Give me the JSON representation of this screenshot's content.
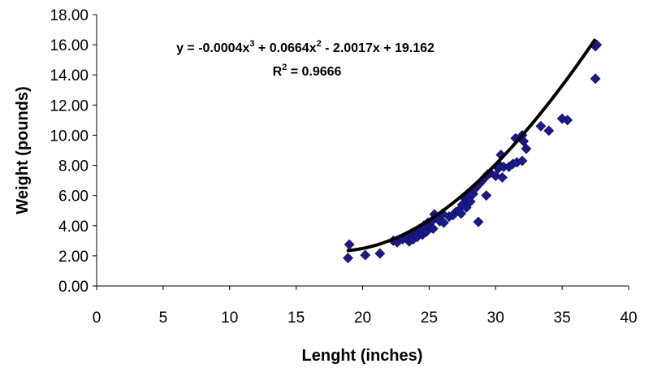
{
  "chart_data": {
    "type": "scatter",
    "xlabel": "Lenght (inches)",
    "ylabel": "Weight (pounds)",
    "xlim": [
      0,
      40
    ],
    "ylim": [
      0,
      18
    ],
    "x_ticks": [
      "0",
      "5",
      "10",
      "15",
      "20",
      "25",
      "30",
      "35",
      "40"
    ],
    "y_ticks": [
      "0.00",
      "2.00",
      "4.00",
      "6.00",
      "8.00",
      "10.00",
      "12.00",
      "14.00",
      "16.00",
      "18.00"
    ],
    "grid": false,
    "legend": false,
    "trendline": {
      "type": "polynomial-3",
      "equation": {
        "prefix": "y = -0.0004x",
        "exp1": "3",
        "mid": " + 0.0664x",
        "exp2": "2",
        "suffix": " - 2.0017x + 19.162"
      },
      "r2": {
        "prefix": "R",
        "exp": "2",
        "suffix": " = 0.9666"
      },
      "coefficients": [
        -0.0004,
        0.0664,
        -2.0017,
        19.162
      ],
      "x_range": [
        18.8,
        37.5
      ]
    },
    "marker_color": "#1a1a8c",
    "points": [
      [
        18.9,
        1.85
      ],
      [
        19.0,
        2.75
      ],
      [
        20.2,
        2.05
      ],
      [
        21.3,
        2.15
      ],
      [
        22.3,
        3.0
      ],
      [
        22.6,
        2.9
      ],
      [
        23.0,
        3.1
      ],
      [
        23.3,
        3.3
      ],
      [
        23.5,
        2.95
      ],
      [
        23.7,
        3.5
      ],
      [
        23.8,
        3.1
      ],
      [
        24.0,
        3.6
      ],
      [
        24.1,
        3.25
      ],
      [
        24.3,
        3.8
      ],
      [
        24.5,
        3.4
      ],
      [
        24.6,
        4.0
      ],
      [
        24.8,
        3.6
      ],
      [
        24.9,
        4.2
      ],
      [
        25.1,
        3.9
      ],
      [
        25.2,
        4.3
      ],
      [
        25.3,
        3.8
      ],
      [
        25.4,
        4.75
      ],
      [
        25.6,
        4.5
      ],
      [
        25.8,
        4.3
      ],
      [
        26.0,
        4.8
      ],
      [
        26.1,
        4.2
      ],
      [
        26.5,
        4.6
      ],
      [
        26.8,
        4.7
      ],
      [
        27.0,
        4.9
      ],
      [
        27.2,
        5.0
      ],
      [
        27.4,
        4.8
      ],
      [
        27.5,
        5.4
      ],
      [
        27.7,
        5.8
      ],
      [
        27.8,
        5.2
      ],
      [
        27.9,
        6.0
      ],
      [
        28.1,
        5.6
      ],
      [
        28.2,
        6.2
      ],
      [
        28.3,
        6.1
      ],
      [
        28.5,
        6.5
      ],
      [
        28.7,
        4.25
      ],
      [
        28.8,
        6.8
      ],
      [
        29.0,
        7.0
      ],
      [
        29.2,
        7.2
      ],
      [
        29.3,
        6.0
      ],
      [
        29.4,
        7.4
      ],
      [
        29.6,
        7.5
      ],
      [
        30.0,
        7.3
      ],
      [
        30.2,
        7.8
      ],
      [
        30.3,
        8.0
      ],
      [
        30.4,
        8.7
      ],
      [
        30.5,
        7.2
      ],
      [
        30.6,
        7.9
      ],
      [
        31.0,
        7.9
      ],
      [
        31.3,
        8.1
      ],
      [
        31.5,
        9.8
      ],
      [
        31.6,
        8.2
      ],
      [
        32.0,
        8.3
      ],
      [
        32.0,
        10.0
      ],
      [
        32.1,
        9.6
      ],
      [
        32.3,
        9.1
      ],
      [
        33.4,
        10.6
      ],
      [
        34.0,
        10.3
      ],
      [
        35.0,
        11.1
      ],
      [
        35.4,
        11.0
      ],
      [
        37.5,
        13.75
      ],
      [
        37.5,
        15.9
      ],
      [
        37.6,
        16.0
      ]
    ]
  }
}
